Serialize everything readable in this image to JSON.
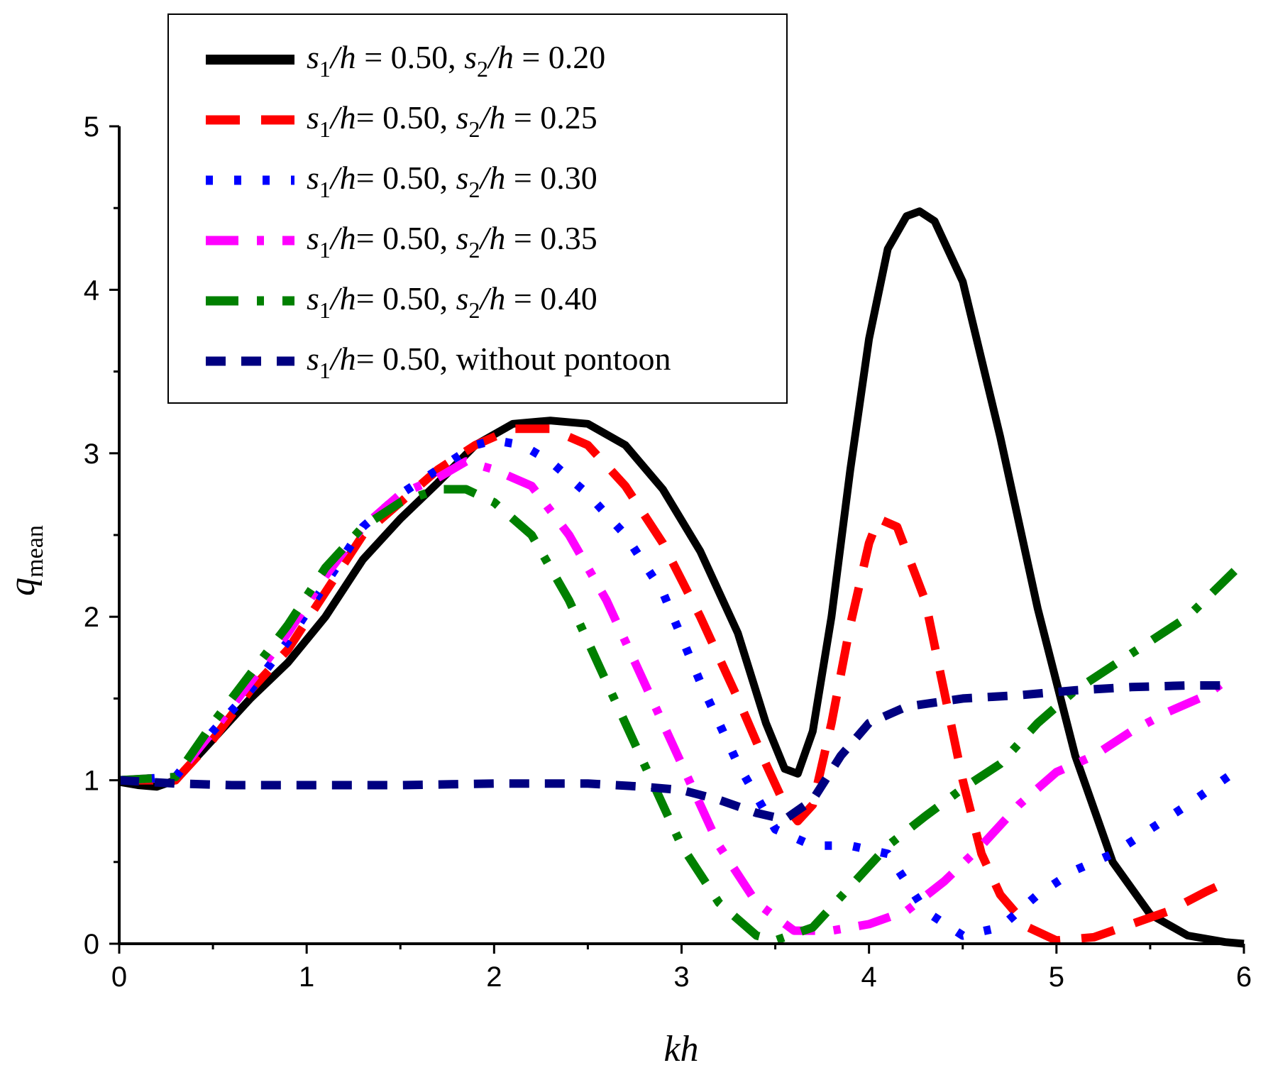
{
  "chart_data": {
    "type": "line",
    "title": "",
    "xlabel": "kh",
    "ylabel": {
      "main": "q",
      "sub": "mean"
    },
    "xlim": [
      0,
      6
    ],
    "ylim": [
      0,
      5
    ],
    "x_ticks": [
      0,
      1,
      2,
      3,
      4,
      5,
      6
    ],
    "y_ticks": [
      0,
      1,
      2,
      3,
      4,
      5
    ],
    "x_tick_labels": [
      "0",
      "1",
      "2",
      "3",
      "4",
      "5",
      "6"
    ],
    "y_tick_labels": [
      "0",
      "1",
      "2",
      "3",
      "4",
      "5"
    ],
    "grid": false,
    "legend_position": "top-left",
    "series": [
      {
        "name": "s1/h = 0.50, s2/h = 0.20",
        "legend": {
          "s1": "s",
          "s1_sub": "1",
          "mid": "/h = 0.50, ",
          "s2": "s",
          "s2_sub": "2",
          "tail": "/h = 0.20"
        },
        "color": "#000000",
        "style": "solid",
        "points": [
          [
            0,
            0.99
          ],
          [
            0.1,
            0.97
          ],
          [
            0.2,
            0.96
          ],
          [
            0.3,
            1.0
          ],
          [
            0.5,
            1.25
          ],
          [
            0.7,
            1.5
          ],
          [
            0.9,
            1.72
          ],
          [
            1.1,
            2.0
          ],
          [
            1.3,
            2.35
          ],
          [
            1.5,
            2.6
          ],
          [
            1.7,
            2.82
          ],
          [
            1.9,
            3.05
          ],
          [
            2.1,
            3.18
          ],
          [
            2.3,
            3.2
          ],
          [
            2.5,
            3.18
          ],
          [
            2.7,
            3.05
          ],
          [
            2.9,
            2.78
          ],
          [
            3.1,
            2.4
          ],
          [
            3.3,
            1.9
          ],
          [
            3.45,
            1.35
          ],
          [
            3.55,
            1.07
          ],
          [
            3.62,
            1.04
          ],
          [
            3.7,
            1.3
          ],
          [
            3.8,
            2.0
          ],
          [
            3.9,
            2.9
          ],
          [
            4.0,
            3.7
          ],
          [
            4.1,
            4.25
          ],
          [
            4.2,
            4.45
          ],
          [
            4.27,
            4.48
          ],
          [
            4.35,
            4.42
          ],
          [
            4.5,
            4.05
          ],
          [
            4.7,
            3.1
          ],
          [
            4.9,
            2.05
          ],
          [
            5.1,
            1.15
          ],
          [
            5.3,
            0.5
          ],
          [
            5.5,
            0.18
          ],
          [
            5.7,
            0.05
          ],
          [
            5.9,
            0.01
          ],
          [
            6.0,
            0.0
          ]
        ]
      },
      {
        "name": "s1/h= 0.50, s2/h = 0.25",
        "legend": {
          "s1": "s",
          "s1_sub": "1",
          "mid": "/h= 0.50, ",
          "s2": "s",
          "s2_sub": "2",
          "tail": "/h = 0.25"
        },
        "color": "#ff0000",
        "style": "dash",
        "points": [
          [
            0,
            1.0
          ],
          [
            0.3,
            1.0
          ],
          [
            0.5,
            1.25
          ],
          [
            0.7,
            1.55
          ],
          [
            0.9,
            1.8
          ],
          [
            1.1,
            2.15
          ],
          [
            1.3,
            2.5
          ],
          [
            1.5,
            2.7
          ],
          [
            1.7,
            2.9
          ],
          [
            1.9,
            3.05
          ],
          [
            2.1,
            3.15
          ],
          [
            2.3,
            3.15
          ],
          [
            2.5,
            3.05
          ],
          [
            2.7,
            2.8
          ],
          [
            2.9,
            2.45
          ],
          [
            3.1,
            2.0
          ],
          [
            3.3,
            1.5
          ],
          [
            3.45,
            1.1
          ],
          [
            3.55,
            0.85
          ],
          [
            3.62,
            0.75
          ],
          [
            3.7,
            0.85
          ],
          [
            3.8,
            1.35
          ],
          [
            3.9,
            1.95
          ],
          [
            4.0,
            2.45
          ],
          [
            4.05,
            2.6
          ],
          [
            4.15,
            2.55
          ],
          [
            4.3,
            2.1
          ],
          [
            4.4,
            1.55
          ],
          [
            4.5,
            1.0
          ],
          [
            4.6,
            0.55
          ],
          [
            4.7,
            0.3
          ],
          [
            4.85,
            0.1
          ],
          [
            5.0,
            0.02
          ],
          [
            5.2,
            0.04
          ],
          [
            5.4,
            0.12
          ],
          [
            5.6,
            0.2
          ],
          [
            5.8,
            0.32
          ],
          [
            5.95,
            0.4
          ]
        ]
      },
      {
        "name": "s1/h= 0.50, s2/h = 0.30",
        "legend": {
          "s1": "s",
          "s1_sub": "1",
          "mid": "/h= 0.50, ",
          "s2": "s",
          "s2_sub": "2",
          "tail": "/h = 0.30"
        },
        "color": "#0000ff",
        "style": "dot",
        "points": [
          [
            0,
            1.0
          ],
          [
            0.3,
            1.02
          ],
          [
            0.5,
            1.3
          ],
          [
            0.7,
            1.55
          ],
          [
            0.9,
            1.85
          ],
          [
            1.1,
            2.2
          ],
          [
            1.3,
            2.55
          ],
          [
            1.5,
            2.75
          ],
          [
            1.7,
            2.9
          ],
          [
            1.9,
            3.05
          ],
          [
            2.0,
            3.08
          ],
          [
            2.15,
            3.05
          ],
          [
            2.3,
            2.95
          ],
          [
            2.5,
            2.75
          ],
          [
            2.7,
            2.5
          ],
          [
            2.9,
            2.15
          ],
          [
            3.1,
            1.6
          ],
          [
            3.3,
            1.1
          ],
          [
            3.5,
            0.7
          ],
          [
            3.7,
            0.6
          ],
          [
            3.9,
            0.6
          ],
          [
            4.1,
            0.55
          ],
          [
            4.3,
            0.2
          ],
          [
            4.5,
            0.05
          ],
          [
            4.7,
            0.1
          ],
          [
            4.9,
            0.3
          ],
          [
            5.1,
            0.45
          ],
          [
            5.3,
            0.55
          ],
          [
            5.5,
            0.7
          ],
          [
            5.7,
            0.85
          ],
          [
            5.95,
            1.05
          ]
        ]
      },
      {
        "name": "s1/h= 0.50, s2/h = 0.35",
        "legend": {
          "s1": "s",
          "s1_sub": "1",
          "mid": "/h= 0.50, ",
          "s2": "s",
          "s2_sub": "2",
          "tail": "/h = 0.35"
        },
        "color": "#ff00ff",
        "style": "dashdot",
        "points": [
          [
            0,
            1.0
          ],
          [
            0.3,
            1.02
          ],
          [
            0.5,
            1.3
          ],
          [
            0.7,
            1.6
          ],
          [
            0.9,
            1.9
          ],
          [
            1.1,
            2.25
          ],
          [
            1.3,
            2.55
          ],
          [
            1.5,
            2.75
          ],
          [
            1.7,
            2.85
          ],
          [
            1.85,
            2.95
          ],
          [
            2.0,
            2.9
          ],
          [
            2.2,
            2.8
          ],
          [
            2.4,
            2.5
          ],
          [
            2.6,
            2.1
          ],
          [
            2.8,
            1.6
          ],
          [
            3.0,
            1.1
          ],
          [
            3.2,
            0.6
          ],
          [
            3.4,
            0.25
          ],
          [
            3.6,
            0.08
          ],
          [
            3.8,
            0.08
          ],
          [
            4.0,
            0.12
          ],
          [
            4.2,
            0.2
          ],
          [
            4.4,
            0.38
          ],
          [
            4.6,
            0.6
          ],
          [
            4.8,
            0.85
          ],
          [
            5.0,
            1.05
          ],
          [
            5.2,
            1.15
          ],
          [
            5.4,
            1.3
          ],
          [
            5.6,
            1.42
          ],
          [
            5.8,
            1.52
          ],
          [
            5.95,
            1.65
          ]
        ]
      },
      {
        "name": "s1/h= 0.50, s2/h = 0.40",
        "legend": {
          "s1": "s",
          "s1_sub": "1",
          "mid": "/h= 0.50, ",
          "s2": "s",
          "s2_sub": "2",
          "tail": "/h = 0.40"
        },
        "color": "#008000",
        "style": "dashdot",
        "points": [
          [
            0,
            1.0
          ],
          [
            0.3,
            1.02
          ],
          [
            0.5,
            1.35
          ],
          [
            0.7,
            1.65
          ],
          [
            0.9,
            1.95
          ],
          [
            1.1,
            2.3
          ],
          [
            1.3,
            2.55
          ],
          [
            1.5,
            2.7
          ],
          [
            1.7,
            2.78
          ],
          [
            1.85,
            2.78
          ],
          [
            2.0,
            2.7
          ],
          [
            2.2,
            2.5
          ],
          [
            2.4,
            2.1
          ],
          [
            2.6,
            1.6
          ],
          [
            2.8,
            1.1
          ],
          [
            3.0,
            0.6
          ],
          [
            3.2,
            0.25
          ],
          [
            3.4,
            0.05
          ],
          [
            3.5,
            0.02
          ],
          [
            3.7,
            0.1
          ],
          [
            3.9,
            0.35
          ],
          [
            4.1,
            0.6
          ],
          [
            4.3,
            0.78
          ],
          [
            4.5,
            0.95
          ],
          [
            4.7,
            1.1
          ],
          [
            4.9,
            1.35
          ],
          [
            5.1,
            1.55
          ],
          [
            5.3,
            1.7
          ],
          [
            5.5,
            1.85
          ],
          [
            5.7,
            2.0
          ],
          [
            5.95,
            2.28
          ]
        ]
      },
      {
        "name": "s1/h= 0.50, without pontoon",
        "legend": {
          "s1": "s",
          "s1_sub": "1",
          "mid": "/h= 0.50, without pontoon",
          "s2": "",
          "s2_sub": "",
          "tail": ""
        },
        "color": "#000080",
        "style": "shortdash",
        "points": [
          [
            0,
            1.0
          ],
          [
            0.3,
            0.98
          ],
          [
            0.6,
            0.97
          ],
          [
            1.0,
            0.97
          ],
          [
            1.5,
            0.97
          ],
          [
            2.0,
            0.98
          ],
          [
            2.5,
            0.98
          ],
          [
            2.8,
            0.96
          ],
          [
            3.0,
            0.94
          ],
          [
            3.2,
            0.88
          ],
          [
            3.4,
            0.8
          ],
          [
            3.55,
            0.76
          ],
          [
            3.7,
            0.88
          ],
          [
            3.85,
            1.15
          ],
          [
            4.0,
            1.35
          ],
          [
            4.2,
            1.45
          ],
          [
            4.5,
            1.5
          ],
          [
            4.8,
            1.52
          ],
          [
            5.1,
            1.55
          ],
          [
            5.4,
            1.57
          ],
          [
            5.7,
            1.58
          ],
          [
            5.95,
            1.58
          ]
        ]
      }
    ]
  }
}
